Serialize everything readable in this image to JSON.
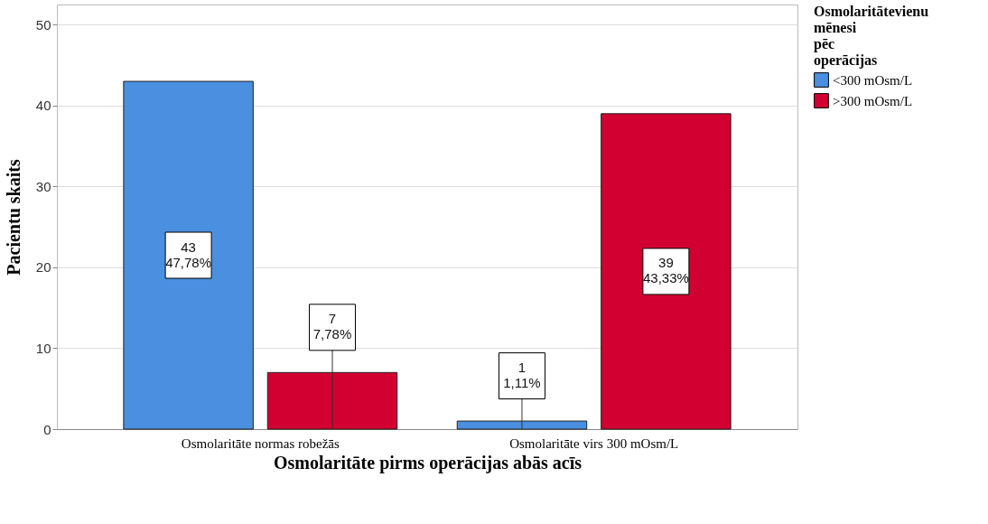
{
  "chart_data": {
    "type": "bar",
    "xlabel": "Osmolaritāte pirms operācijas abās acīs",
    "ylabel": "Pacientu skaits",
    "legend_title": "Osmolaritātevienu mēnesi pēc operācijas",
    "categories": [
      "Osmolaritāte  normas robežās",
      "Osmolaritāte virs 300 mOsm/L"
    ],
    "series": [
      {
        "name": "<300 mOsm/L",
        "color": "#4a8fe0",
        "values": [
          43,
          1
        ],
        "value_labels": [
          "43\n47,78%",
          "1\n1,11%"
        ]
      },
      {
        "name": ">300 mOsm/L",
        "color": "#d10030",
        "values": [
          7,
          39
        ],
        "value_labels": [
          "7\n7,78%",
          "39\n43,33%"
        ]
      }
    ],
    "ylim": [
      0,
      52.5
    ],
    "yticks": [
      0,
      10,
      20,
      30,
      40,
      50
    ],
    "grid": "y",
    "legend": "top right"
  }
}
